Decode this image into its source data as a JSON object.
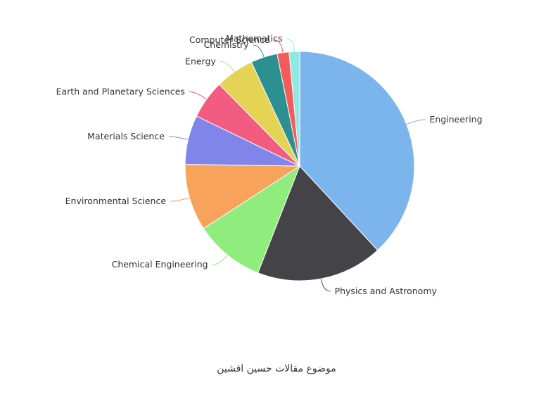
{
  "chart_data": {
    "type": "pie",
    "slices": [
      {
        "label": "Engineering",
        "value": 38.5,
        "color": "#7cb5ec"
      },
      {
        "label": "Physics and Astronomy",
        "value": 18.0,
        "color": "#434348"
      },
      {
        "label": "Chemical Engineering",
        "value": 10.0,
        "color": "#90ed7d"
      },
      {
        "label": "Environmental Science",
        "value": 9.5,
        "color": "#f7a35c"
      },
      {
        "label": "Materials Science",
        "value": 7.0,
        "color": "#8085e9"
      },
      {
        "label": "Earth and Planetary Sciences",
        "value": 5.5,
        "color": "#f15c80"
      },
      {
        "label": "Energy",
        "value": 5.5,
        "color": "#e4d354"
      },
      {
        "label": "Chemistry",
        "value": 3.8,
        "color": "#2b908f"
      },
      {
        "label": "Computer Science",
        "value": 1.7,
        "color": "#f45b5b"
      },
      {
        "label": "Mathematics",
        "value": 1.5,
        "color": "#91e8e1"
      }
    ]
  },
  "caption": "موضوع مقالات حسین افشین"
}
